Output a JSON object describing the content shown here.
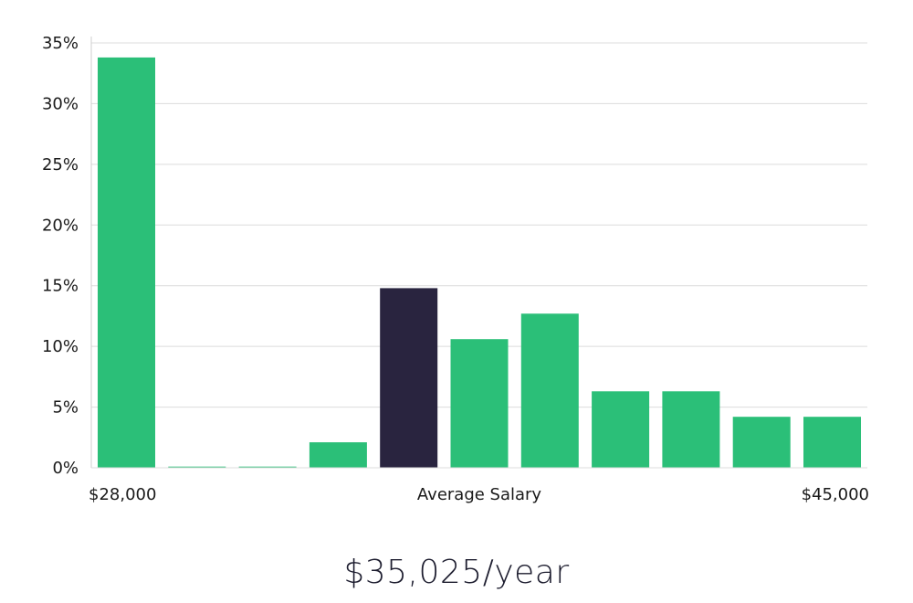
{
  "colors": {
    "bar": "#2bbf78",
    "highlight": "#29243f",
    "grid": "#dcdcdc",
    "axis": "#cfcfcf"
  },
  "chart_data": {
    "type": "bar",
    "categories": [
      "1",
      "2",
      "3",
      "4",
      "5",
      "6",
      "7",
      "8",
      "9",
      "10",
      "11"
    ],
    "values": [
      33.8,
      0.1,
      0.1,
      2.1,
      14.8,
      10.6,
      12.7,
      6.3,
      6.3,
      4.2,
      4.2
    ],
    "highlight_index": 4,
    "ylim": [
      0,
      35
    ],
    "y_ticks": [
      0,
      5,
      10,
      15,
      20,
      25,
      30,
      35
    ],
    "y_tick_labels": [
      "0%",
      "5%",
      "10%",
      "15%",
      "20%",
      "25%",
      "30%",
      "35%"
    ],
    "x_labels": {
      "left": "$28,000",
      "center": "Average Salary",
      "right": "$45,000"
    },
    "grid": true
  },
  "average_salary": "$35,025/year"
}
